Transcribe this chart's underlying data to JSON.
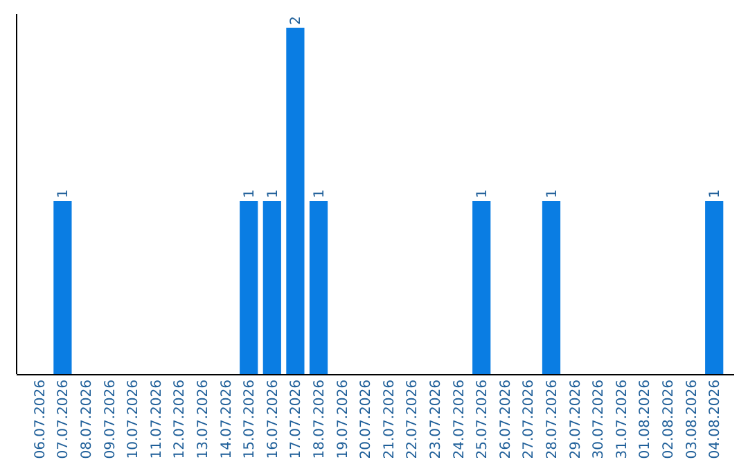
{
  "chart_data": {
    "type": "bar",
    "categories": [
      "06.07.2026",
      "07.07.2026",
      "08.07.2026",
      "09.07.2026",
      "10.07.2026",
      "11.07.2026",
      "12.07.2026",
      "13.07.2026",
      "14.07.2026",
      "15.07.2026",
      "16.07.2026",
      "17.07.2026",
      "18.07.2026",
      "19.07.2026",
      "20.07.2026",
      "21.07.2026",
      "22.07.2026",
      "23.07.2026",
      "24.07.2026",
      "25.07.2026",
      "26.07.2026",
      "27.07.2026",
      "28.07.2026",
      "29.07.2026",
      "30.07.2026",
      "31.07.2026",
      "01.08.2026",
      "02.08.2026",
      "03.08.2026",
      "04.08.2026"
    ],
    "values": [
      0,
      1,
      0,
      0,
      0,
      0,
      0,
      0,
      0,
      1,
      1,
      2,
      1,
      0,
      0,
      0,
      0,
      0,
      0,
      1,
      0,
      0,
      1,
      0,
      0,
      0,
      0,
      0,
      0,
      1
    ],
    "value_labels": [
      null,
      "1",
      null,
      null,
      null,
      null,
      null,
      null,
      null,
      "1",
      "1",
      "2",
      "1",
      null,
      null,
      null,
      null,
      null,
      null,
      "1",
      null,
      null,
      "1",
      null,
      null,
      null,
      null,
      null,
      null,
      "1"
    ],
    "color": "#0a7de3",
    "tick_labels": "x"
  }
}
